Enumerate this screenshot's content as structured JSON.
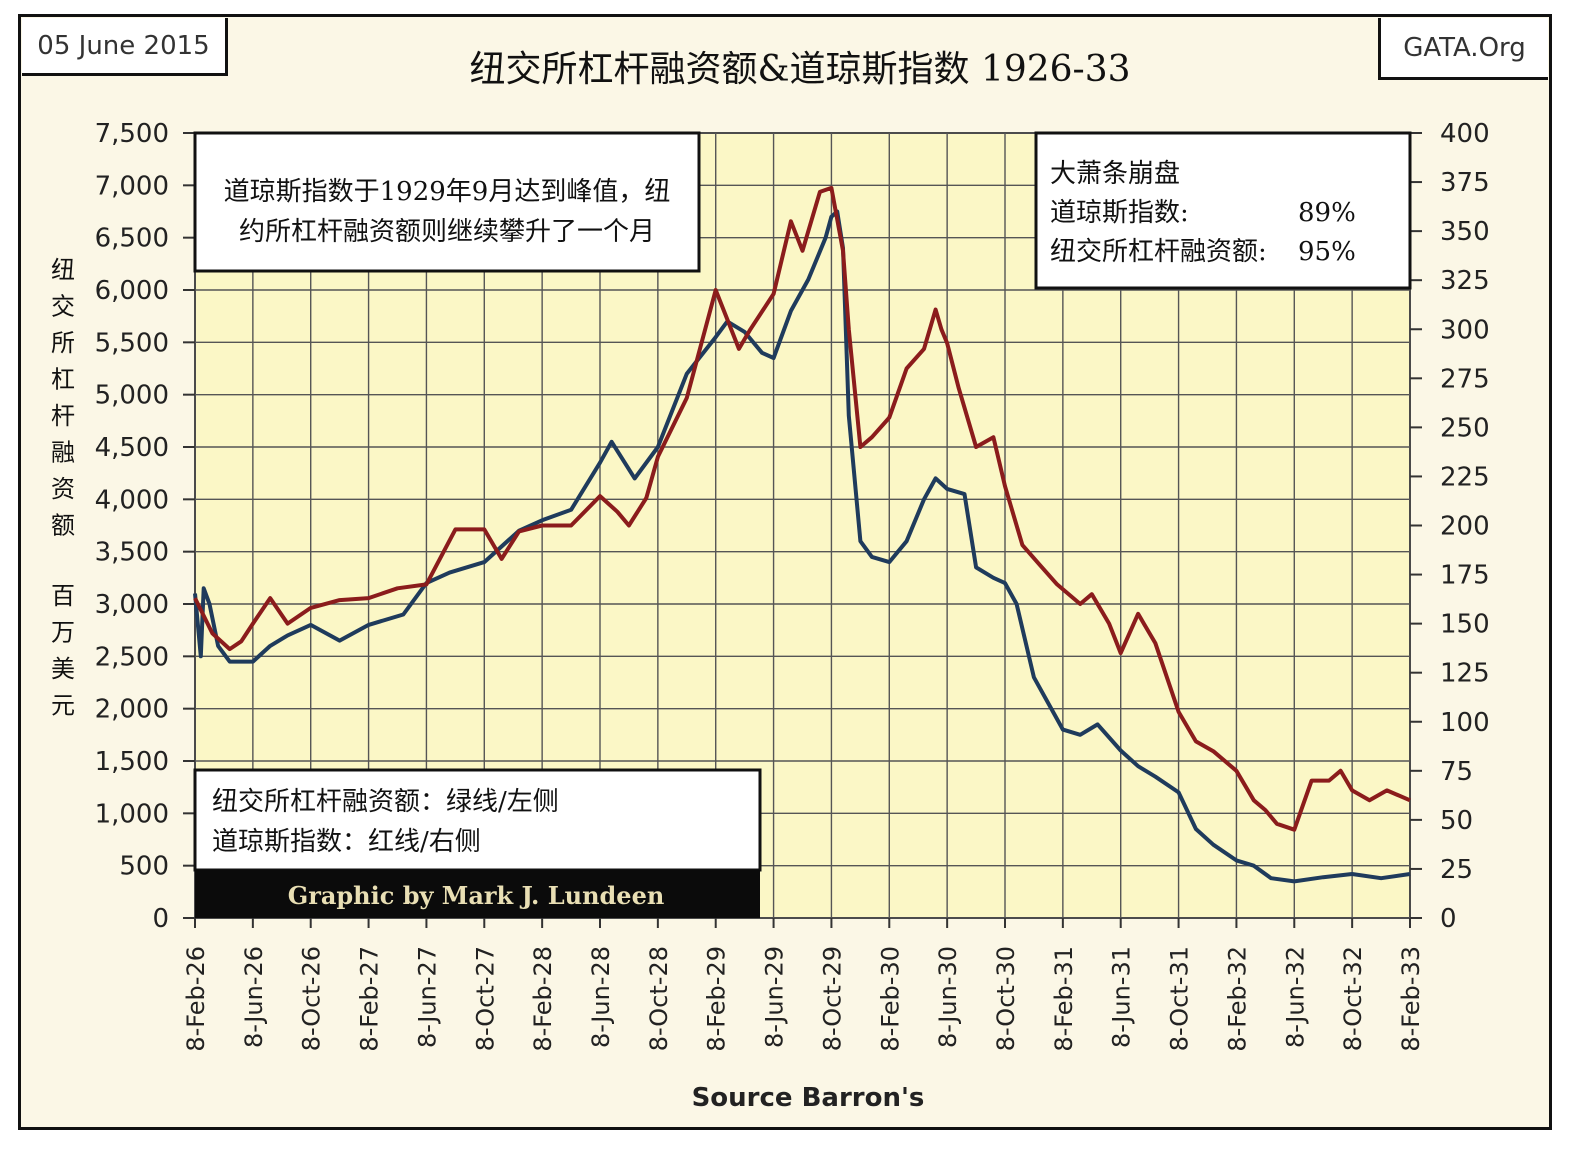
{
  "header": {
    "date": "05 June 2015",
    "source": "GATA.Org",
    "title": "纽交所杠杆融资额&道琼斯指数 1926-33"
  },
  "annotations": {
    "peak_note_line1": "道琼斯指数于1929年9月达到峰值，纽",
    "peak_note_line2": "约所杠杆融资额则继续攀升了一个月",
    "crash_title": "大萧条崩盘",
    "crash_djia_label": "道琼斯指数:",
    "crash_djia_value": "89%",
    "crash_margin_label": "纽交所杠杆融资额:",
    "crash_margin_value": "95%",
    "legend_margin": "纽交所杠杆融资额：绿线/左侧",
    "legend_djia": "道琼斯指数：红线/右侧",
    "credit": "Graphic by Mark J. Lundeen"
  },
  "chart_data": {
    "type": "line",
    "xlabel": "Source Barron's",
    "ylabel_left": "纽交所杠杆融资额 百万美元",
    "ylabel_right": "",
    "categories": [
      "8-Feb-26",
      "8-Jun-26",
      "8-Oct-26",
      "8-Feb-27",
      "8-Jun-27",
      "8-Oct-27",
      "8-Feb-28",
      "8-Jun-28",
      "8-Oct-28",
      "8-Feb-29",
      "8-Jun-29",
      "8-Oct-29",
      "8-Feb-30",
      "8-Jun-30",
      "8-Oct-30",
      "8-Feb-31",
      "8-Jun-31",
      "8-Oct-31",
      "8-Feb-32",
      "8-Jun-32",
      "8-Oct-32",
      "8-Feb-33"
    ],
    "y_left_ticks": [
      "0",
      "500",
      "1,000",
      "1,500",
      "2,000",
      "2,500",
      "3,000",
      "3,500",
      "4,000",
      "4,500",
      "5,000",
      "5,500",
      "6,000",
      "6,500",
      "7,000",
      "7,500"
    ],
    "y_right_ticks": [
      "0",
      "25",
      "50",
      "75",
      "100",
      "125",
      "150",
      "175",
      "200",
      "225",
      "250",
      "275",
      "300",
      "325",
      "350",
      "375",
      "400"
    ],
    "ylim_left": [
      0,
      7500
    ],
    "ylim_right": [
      0,
      400
    ],
    "grid": true,
    "series": [
      {
        "name": "纽交所杠杆融资额",
        "axis": "left",
        "color": "#1f3b5c",
        "x": [
          0,
          0.1,
          0.15,
          0.25,
          0.4,
          0.6,
          1.0,
          1.3,
          1.6,
          2.0,
          2.5,
          3.0,
          3.6,
          4.0,
          4.4,
          5.0,
          5.6,
          6.0,
          6.5,
          7.0,
          7.2,
          7.6,
          8.0,
          8.5,
          9.0,
          9.2,
          9.5,
          9.8,
          10.0,
          10.3,
          10.6,
          10.9,
          11.0,
          11.1,
          11.2,
          11.3,
          11.5,
          11.7,
          12.0,
          12.3,
          12.6,
          12.8,
          13.0,
          13.3,
          13.5,
          13.8,
          14.0,
          14.2,
          14.5,
          15.0,
          15.3,
          15.6,
          16.0,
          16.3,
          16.6,
          17.0,
          17.3,
          17.6,
          18.0,
          18.3,
          18.6,
          19.0,
          19.5,
          20.0,
          20.5,
          21.0
        ],
        "values": [
          3100,
          2500,
          3150,
          3000,
          2600,
          2450,
          2450,
          2600,
          2700,
          2800,
          2650,
          2800,
          2900,
          3200,
          3300,
          3400,
          3700,
          3800,
          3900,
          4350,
          4550,
          4200,
          4500,
          5200,
          5550,
          5700,
          5600,
          5400,
          5350,
          5800,
          6100,
          6500,
          6700,
          6750,
          6400,
          4800,
          3600,
          3450,
          3400,
          3600,
          4000,
          4200,
          4100,
          4050,
          3350,
          3250,
          3200,
          3000,
          2300,
          1800,
          1750,
          1850,
          1600,
          1450,
          1350,
          1200,
          850,
          700,
          550,
          500,
          380,
          350,
          390,
          420,
          380,
          420
        ]
      },
      {
        "name": "道琼斯指数",
        "axis": "right",
        "color": "#8b1c1c",
        "x": [
          0,
          0.3,
          0.6,
          0.8,
          1.0,
          1.3,
          1.6,
          2.0,
          2.5,
          3.0,
          3.5,
          4.0,
          4.5,
          5.0,
          5.3,
          5.6,
          6.0,
          6.5,
          7.0,
          7.3,
          7.5,
          7.8,
          8.0,
          8.5,
          9.0,
          9.2,
          9.4,
          9.6,
          10.0,
          10.3,
          10.5,
          10.8,
          11.0,
          11.2,
          11.3,
          11.5,
          11.7,
          12.0,
          12.3,
          12.6,
          12.8,
          12.9,
          13.0,
          13.2,
          13.5,
          13.8,
          14.0,
          14.3,
          14.6,
          14.9,
          15.3,
          15.5,
          15.8,
          16.0,
          16.3,
          16.6,
          17.0,
          17.3,
          17.6,
          18.0,
          18.3,
          18.5,
          18.7,
          19.0,
          19.3,
          19.6,
          19.8,
          20.0,
          20.3,
          20.6,
          21.0
        ],
        "values": [
          163,
          145,
          137,
          141,
          150,
          163,
          150,
          158,
          162,
          163,
          168,
          170,
          198,
          198,
          183,
          197,
          200,
          200,
          215,
          207,
          200,
          214,
          235,
          265,
          320,
          305,
          290,
          300,
          318,
          355,
          340,
          370,
          372,
          340,
          300,
          240,
          245,
          255,
          280,
          290,
          310,
          300,
          293,
          270,
          240,
          245,
          220,
          190,
          180,
          170,
          160,
          165,
          150,
          135,
          155,
          140,
          105,
          90,
          85,
          75,
          60,
          55,
          48,
          45,
          70,
          70,
          75,
          65,
          60,
          65,
          60
        ]
      }
    ]
  }
}
